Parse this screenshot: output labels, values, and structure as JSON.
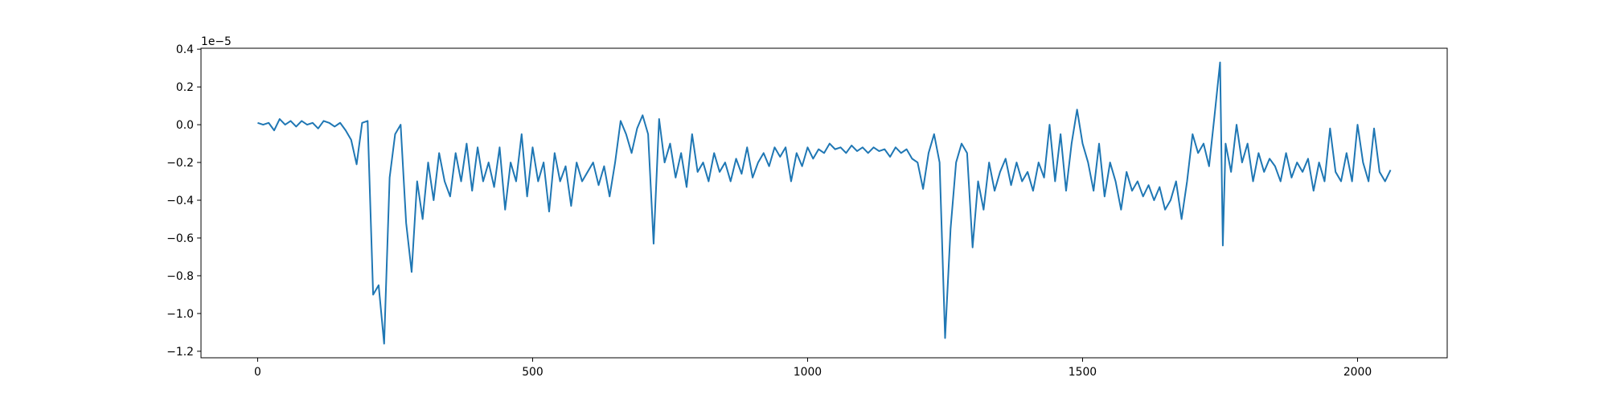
{
  "chart_data": {
    "type": "line",
    "y_offset_label": "1e−5",
    "xlim": [
      -103,
      2163
    ],
    "xticks": [
      0,
      500,
      1000,
      1500,
      2000
    ],
    "ylim": [
      -1.2345,
      0.405
    ],
    "yticks": [
      0.4,
      0.2,
      {
        "value": 0,
        "label": "0.0"
      },
      {
        "value": -0.2,
        "label": "−0.2"
      },
      {
        "value": -0.4,
        "label": "−0.4"
      },
      {
        "value": -0.6,
        "label": "−0.6"
      },
      {
        "value": -0.8,
        "label": "−0.8"
      },
      {
        "value": -1.0,
        "label": "−1.0"
      },
      {
        "value": -1.2,
        "label": "−1.2"
      }
    ],
    "grid": false,
    "color": "#1f77b4",
    "x": [
      0,
      10,
      20,
      30,
      40,
      50,
      60,
      70,
      80,
      90,
      100,
      110,
      120,
      130,
      140,
      150,
      160,
      170,
      180,
      190,
      200,
      210,
      220,
      230,
      240,
      250,
      260,
      270,
      280,
      290,
      300,
      310,
      320,
      330,
      340,
      350,
      360,
      370,
      380,
      390,
      400,
      410,
      420,
      430,
      440,
      450,
      460,
      470,
      480,
      490,
      500,
      510,
      520,
      530,
      540,
      550,
      560,
      570,
      580,
      590,
      600,
      610,
      620,
      630,
      640,
      650,
      660,
      670,
      680,
      690,
      700,
      710,
      720,
      730,
      740,
      750,
      760,
      770,
      780,
      790,
      800,
      810,
      820,
      830,
      840,
      850,
      860,
      870,
      880,
      890,
      900,
      910,
      920,
      930,
      940,
      950,
      960,
      970,
      980,
      990,
      1000,
      1010,
      1020,
      1030,
      1040,
      1050,
      1060,
      1070,
      1080,
      1090,
      1100,
      1110,
      1120,
      1130,
      1140,
      1150,
      1160,
      1170,
      1180,
      1190,
      1200,
      1210,
      1220,
      1230,
      1240,
      1250,
      1260,
      1270,
      1280,
      1290,
      1300,
      1310,
      1320,
      1330,
      1340,
      1350,
      1360,
      1370,
      1380,
      1390,
      1400,
      1410,
      1420,
      1430,
      1440,
      1450,
      1460,
      1470,
      1480,
      1490,
      1500,
      1510,
      1520,
      1530,
      1540,
      1550,
      1560,
      1570,
      1580,
      1590,
      1600,
      1610,
      1620,
      1630,
      1640,
      1650,
      1660,
      1670,
      1680,
      1690,
      1700,
      1710,
      1720,
      1730,
      1740,
      1750,
      1755,
      1760,
      1770,
      1780,
      1790,
      1800,
      1810,
      1820,
      1830,
      1840,
      1850,
      1860,
      1870,
      1880,
      1890,
      1900,
      1910,
      1920,
      1930,
      1940,
      1950,
      1960,
      1970,
      1980,
      1990,
      2000,
      2010,
      2020,
      2030,
      2040,
      2050,
      2060
    ],
    "values": [
      0.01,
      0.0,
      0.01,
      -0.03,
      0.03,
      0.0,
      0.02,
      -0.01,
      0.02,
      0.0,
      0.01,
      -0.02,
      0.02,
      0.01,
      -0.01,
      0.01,
      -0.03,
      -0.08,
      -0.21,
      0.01,
      0.02,
      -0.9,
      -0.85,
      -1.16,
      -0.28,
      -0.05,
      0.0,
      -0.52,
      -0.78,
      -0.3,
      -0.5,
      -0.2,
      -0.4,
      -0.15,
      -0.3,
      -0.38,
      -0.15,
      -0.3,
      -0.1,
      -0.35,
      -0.12,
      -0.3,
      -0.2,
      -0.33,
      -0.12,
      -0.45,
      -0.2,
      -0.3,
      -0.05,
      -0.38,
      -0.12,
      -0.3,
      -0.2,
      -0.46,
      -0.15,
      -0.3,
      -0.22,
      -0.43,
      -0.2,
      -0.3,
      -0.25,
      -0.2,
      -0.32,
      -0.22,
      -0.38,
      -0.2,
      0.02,
      -0.05,
      -0.15,
      -0.02,
      0.05,
      -0.05,
      -0.63,
      0.03,
      -0.2,
      -0.1,
      -0.28,
      -0.15,
      -0.33,
      -0.05,
      -0.25,
      -0.2,
      -0.3,
      -0.15,
      -0.25,
      -0.2,
      -0.3,
      -0.18,
      -0.26,
      -0.12,
      -0.28,
      -0.2,
      -0.15,
      -0.22,
      -0.12,
      -0.17,
      -0.12,
      -0.3,
      -0.15,
      -0.22,
      -0.12,
      -0.18,
      -0.13,
      -0.15,
      -0.1,
      -0.13,
      -0.12,
      -0.15,
      -0.11,
      -0.14,
      -0.12,
      -0.15,
      -0.12,
      -0.14,
      -0.13,
      -0.17,
      -0.12,
      -0.15,
      -0.13,
      -0.18,
      -0.2,
      -0.34,
      -0.15,
      -0.05,
      -0.2,
      -1.13,
      -0.55,
      -0.2,
      -0.1,
      -0.15,
      -0.65,
      -0.3,
      -0.45,
      -0.2,
      -0.35,
      -0.25,
      -0.18,
      -0.32,
      -0.2,
      -0.3,
      -0.25,
      -0.35,
      -0.2,
      -0.28,
      0.0,
      -0.3,
      -0.05,
      -0.35,
      -0.1,
      0.08,
      -0.1,
      -0.2,
      -0.35,
      -0.1,
      -0.38,
      -0.2,
      -0.3,
      -0.45,
      -0.25,
      -0.35,
      -0.3,
      -0.38,
      -0.32,
      -0.4,
      -0.33,
      -0.45,
      -0.4,
      -0.3,
      -0.5,
      -0.3,
      -0.05,
      -0.15,
      -0.1,
      -0.22,
      0.05,
      0.33,
      -0.64,
      -0.1,
      -0.25,
      0.0,
      -0.2,
      -0.1,
      -0.3,
      -0.15,
      -0.25,
      -0.18,
      -0.22,
      -0.3,
      -0.15,
      -0.28,
      -0.2,
      -0.25,
      -0.18,
      -0.35,
      -0.2,
      -0.3,
      -0.02,
      -0.25,
      -0.3,
      -0.15,
      -0.3,
      0.0,
      -0.2,
      -0.3,
      -0.02,
      -0.25,
      -0.3,
      -0.24
    ]
  }
}
